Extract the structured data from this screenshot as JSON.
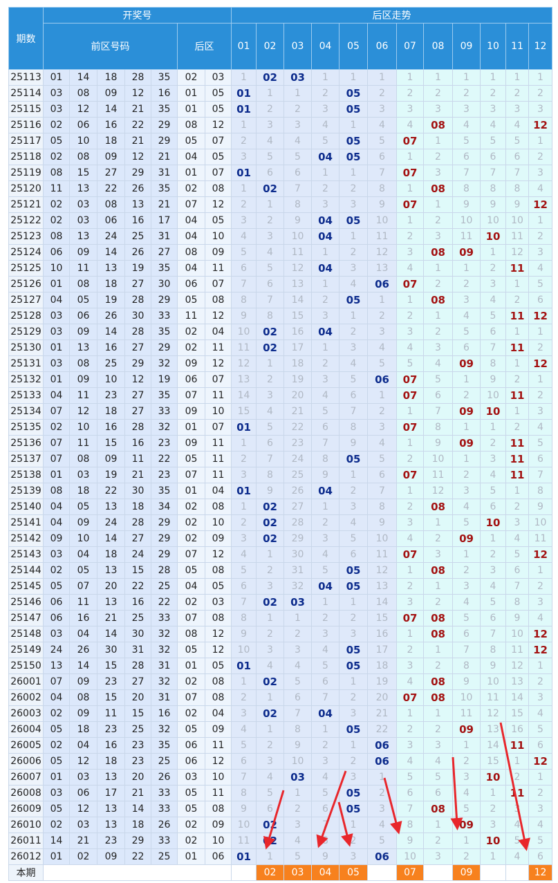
{
  "header": {
    "period": "期数",
    "draw": "开奖号",
    "front": "前区号码",
    "back": "后区",
    "trend": "后区走势",
    "trend_cols": [
      "01",
      "02",
      "03",
      "04",
      "05",
      "06",
      "07",
      "08",
      "09",
      "10",
      "11",
      "12"
    ]
  },
  "table": {
    "rows": [
      [
        "25113",
        "01",
        "14",
        "18",
        "28",
        "35",
        "02",
        "03",
        "1",
        "02",
        "03",
        "1",
        "1",
        "1",
        "1",
        "1",
        "1",
        "1",
        "1",
        "1"
      ],
      [
        "25114",
        "03",
        "08",
        "09",
        "12",
        "16",
        "01",
        "05",
        "01",
        "1",
        "1",
        "2",
        "05",
        "2",
        "2",
        "2",
        "2",
        "2",
        "2",
        "2"
      ],
      [
        "25115",
        "03",
        "12",
        "14",
        "21",
        "35",
        "01",
        "05",
        "01",
        "2",
        "2",
        "3",
        "05",
        "3",
        "3",
        "3",
        "3",
        "3",
        "3",
        "3"
      ],
      [
        "25116",
        "02",
        "06",
        "16",
        "22",
        "29",
        "08",
        "12",
        "1",
        "3",
        "3",
        "4",
        "1",
        "4",
        "4",
        "08",
        "4",
        "4",
        "4",
        "12"
      ],
      [
        "25117",
        "05",
        "10",
        "18",
        "21",
        "29",
        "05",
        "07",
        "2",
        "4",
        "4",
        "5",
        "05",
        "5",
        "07",
        "1",
        "5",
        "5",
        "5",
        "1"
      ],
      [
        "25118",
        "02",
        "08",
        "09",
        "12",
        "21",
        "04",
        "05",
        "3",
        "5",
        "5",
        "04",
        "05",
        "6",
        "1",
        "2",
        "6",
        "6",
        "6",
        "2"
      ],
      [
        "25119",
        "08",
        "15",
        "27",
        "29",
        "31",
        "01",
        "07",
        "01",
        "6",
        "6",
        "1",
        "1",
        "7",
        "07",
        "3",
        "7",
        "7",
        "7",
        "3"
      ],
      [
        "25120",
        "11",
        "13",
        "22",
        "26",
        "35",
        "02",
        "08",
        "1",
        "02",
        "7",
        "2",
        "2",
        "8",
        "1",
        "08",
        "8",
        "8",
        "8",
        "4"
      ],
      [
        "25121",
        "02",
        "03",
        "08",
        "13",
        "21",
        "07",
        "12",
        "2",
        "1",
        "8",
        "3",
        "3",
        "9",
        "07",
        "1",
        "9",
        "9",
        "9",
        "12"
      ],
      [
        "25122",
        "02",
        "03",
        "06",
        "16",
        "17",
        "04",
        "05",
        "3",
        "2",
        "9",
        "04",
        "05",
        "10",
        "1",
        "2",
        "10",
        "10",
        "10",
        "1"
      ],
      [
        "25123",
        "08",
        "13",
        "24",
        "25",
        "31",
        "04",
        "10",
        "4",
        "3",
        "10",
        "04",
        "1",
        "11",
        "2",
        "3",
        "11",
        "10",
        "11",
        "2"
      ],
      [
        "25124",
        "06",
        "09",
        "14",
        "26",
        "27",
        "08",
        "09",
        "5",
        "4",
        "11",
        "1",
        "2",
        "12",
        "3",
        "08",
        "09",
        "1",
        "12",
        "3"
      ],
      [
        "25125",
        "10",
        "11",
        "13",
        "19",
        "35",
        "04",
        "11",
        "6",
        "5",
        "12",
        "04",
        "3",
        "13",
        "4",
        "1",
        "1",
        "2",
        "11",
        "4"
      ],
      [
        "25126",
        "01",
        "08",
        "18",
        "27",
        "30",
        "06",
        "07",
        "7",
        "6",
        "13",
        "1",
        "4",
        "06",
        "07",
        "2",
        "2",
        "3",
        "1",
        "5"
      ],
      [
        "25127",
        "04",
        "05",
        "19",
        "28",
        "29",
        "05",
        "08",
        "8",
        "7",
        "14",
        "2",
        "05",
        "1",
        "1",
        "08",
        "3",
        "4",
        "2",
        "6"
      ],
      [
        "25128",
        "03",
        "06",
        "26",
        "30",
        "33",
        "11",
        "12",
        "9",
        "8",
        "15",
        "3",
        "1",
        "2",
        "2",
        "1",
        "4",
        "5",
        "11",
        "12"
      ],
      [
        "25129",
        "03",
        "09",
        "14",
        "28",
        "35",
        "02",
        "04",
        "10",
        "02",
        "16",
        "04",
        "2",
        "3",
        "3",
        "2",
        "5",
        "6",
        "1",
        "1"
      ],
      [
        "25130",
        "01",
        "13",
        "16",
        "27",
        "29",
        "02",
        "11",
        "11",
        "02",
        "17",
        "1",
        "3",
        "4",
        "4",
        "3",
        "6",
        "7",
        "11",
        "2"
      ],
      [
        "25131",
        "03",
        "08",
        "25",
        "29",
        "32",
        "09",
        "12",
        "12",
        "1",
        "18",
        "2",
        "4",
        "5",
        "5",
        "4",
        "09",
        "8",
        "1",
        "12"
      ],
      [
        "25132",
        "01",
        "09",
        "10",
        "12",
        "19",
        "06",
        "07",
        "13",
        "2",
        "19",
        "3",
        "5",
        "06",
        "07",
        "5",
        "1",
        "9",
        "2",
        "1"
      ],
      [
        "25133",
        "04",
        "11",
        "23",
        "27",
        "35",
        "07",
        "11",
        "14",
        "3",
        "20",
        "4",
        "6",
        "1",
        "07",
        "6",
        "2",
        "10",
        "11",
        "2"
      ],
      [
        "25134",
        "07",
        "12",
        "18",
        "27",
        "33",
        "09",
        "10",
        "15",
        "4",
        "21",
        "5",
        "7",
        "2",
        "1",
        "7",
        "09",
        "10",
        "1",
        "3"
      ],
      [
        "25135",
        "02",
        "10",
        "16",
        "28",
        "32",
        "01",
        "07",
        "01",
        "5",
        "22",
        "6",
        "8",
        "3",
        "07",
        "8",
        "1",
        "1",
        "2",
        "4"
      ],
      [
        "25136",
        "07",
        "11",
        "15",
        "16",
        "23",
        "09",
        "11",
        "1",
        "6",
        "23",
        "7",
        "9",
        "4",
        "1",
        "9",
        "09",
        "2",
        "11",
        "5"
      ],
      [
        "25137",
        "07",
        "08",
        "09",
        "11",
        "22",
        "05",
        "11",
        "2",
        "7",
        "24",
        "8",
        "05",
        "5",
        "2",
        "10",
        "1",
        "3",
        "11",
        "6"
      ],
      [
        "25138",
        "01",
        "03",
        "19",
        "21",
        "23",
        "07",
        "11",
        "3",
        "8",
        "25",
        "9",
        "1",
        "6",
        "07",
        "11",
        "2",
        "4",
        "11",
        "7"
      ],
      [
        "25139",
        "08",
        "18",
        "22",
        "30",
        "35",
        "01",
        "04",
        "01",
        "9",
        "26",
        "04",
        "2",
        "7",
        "1",
        "12",
        "3",
        "5",
        "1",
        "8"
      ],
      [
        "25140",
        "04",
        "05",
        "13",
        "18",
        "34",
        "02",
        "08",
        "1",
        "02",
        "27",
        "1",
        "3",
        "8",
        "2",
        "08",
        "4",
        "6",
        "2",
        "9"
      ],
      [
        "25141",
        "04",
        "09",
        "24",
        "28",
        "29",
        "02",
        "10",
        "2",
        "02",
        "28",
        "2",
        "4",
        "9",
        "3",
        "1",
        "5",
        "10",
        "3",
        "10"
      ],
      [
        "25142",
        "09",
        "10",
        "14",
        "27",
        "29",
        "02",
        "09",
        "3",
        "02",
        "29",
        "3",
        "5",
        "10",
        "4",
        "2",
        "09",
        "1",
        "4",
        "11"
      ],
      [
        "25143",
        "03",
        "04",
        "18",
        "24",
        "29",
        "07",
        "12",
        "4",
        "1",
        "30",
        "4",
        "6",
        "11",
        "07",
        "3",
        "1",
        "2",
        "5",
        "12"
      ],
      [
        "25144",
        "02",
        "05",
        "13",
        "15",
        "28",
        "05",
        "08",
        "5",
        "2",
        "31",
        "5",
        "05",
        "12",
        "1",
        "08",
        "2",
        "3",
        "6",
        "1"
      ],
      [
        "25145",
        "05",
        "07",
        "20",
        "22",
        "25",
        "04",
        "05",
        "6",
        "3",
        "32",
        "04",
        "05",
        "13",
        "2",
        "1",
        "3",
        "4",
        "7",
        "2"
      ],
      [
        "25146",
        "06",
        "11",
        "13",
        "16",
        "22",
        "02",
        "03",
        "7",
        "02",
        "03",
        "1",
        "1",
        "14",
        "3",
        "2",
        "4",
        "5",
        "8",
        "3"
      ],
      [
        "25147",
        "06",
        "16",
        "21",
        "25",
        "33",
        "07",
        "08",
        "8",
        "1",
        "1",
        "2",
        "2",
        "15",
        "07",
        "08",
        "5",
        "6",
        "9",
        "4"
      ],
      [
        "25148",
        "03",
        "04",
        "14",
        "30",
        "32",
        "08",
        "12",
        "9",
        "2",
        "2",
        "3",
        "3",
        "16",
        "1",
        "08",
        "6",
        "7",
        "10",
        "12"
      ],
      [
        "25149",
        "24",
        "26",
        "30",
        "31",
        "32",
        "05",
        "12",
        "10",
        "3",
        "3",
        "4",
        "05",
        "17",
        "2",
        "1",
        "7",
        "8",
        "11",
        "12"
      ],
      [
        "25150",
        "13",
        "14",
        "15",
        "28",
        "31",
        "01",
        "05",
        "01",
        "4",
        "4",
        "5",
        "05",
        "18",
        "3",
        "2",
        "8",
        "9",
        "12",
        "1"
      ],
      [
        "26001",
        "07",
        "09",
        "23",
        "27",
        "32",
        "02",
        "08",
        "1",
        "02",
        "5",
        "6",
        "1",
        "19",
        "4",
        "08",
        "9",
        "10",
        "13",
        "2"
      ],
      [
        "26002",
        "04",
        "08",
        "15",
        "20",
        "31",
        "07",
        "08",
        "2",
        "1",
        "6",
        "7",
        "2",
        "20",
        "07",
        "08",
        "10",
        "11",
        "14",
        "3"
      ],
      [
        "26003",
        "02",
        "09",
        "11",
        "15",
        "16",
        "02",
        "04",
        "3",
        "02",
        "7",
        "04",
        "3",
        "21",
        "1",
        "1",
        "11",
        "12",
        "15",
        "4"
      ],
      [
        "26004",
        "05",
        "18",
        "23",
        "25",
        "32",
        "05",
        "09",
        "4",
        "1",
        "8",
        "1",
        "05",
        "22",
        "2",
        "2",
        "09",
        "13",
        "16",
        "5"
      ],
      [
        "26005",
        "02",
        "04",
        "16",
        "23",
        "35",
        "06",
        "11",
        "5",
        "2",
        "9",
        "2",
        "1",
        "06",
        "3",
        "3",
        "1",
        "14",
        "11",
        "6"
      ],
      [
        "26006",
        "05",
        "12",
        "18",
        "23",
        "25",
        "06",
        "12",
        "6",
        "3",
        "10",
        "3",
        "2",
        "06",
        "4",
        "4",
        "2",
        "15",
        "1",
        "12"
      ],
      [
        "26007",
        "01",
        "03",
        "13",
        "20",
        "26",
        "03",
        "10",
        "7",
        "4",
        "03",
        "4",
        "3",
        "1",
        "5",
        "5",
        "3",
        "10",
        "2",
        "1"
      ],
      [
        "26008",
        "03",
        "06",
        "17",
        "21",
        "33",
        "05",
        "11",
        "8",
        "5",
        "1",
        "5",
        "05",
        "2",
        "6",
        "6",
        "4",
        "1",
        "11",
        "2"
      ],
      [
        "26009",
        "05",
        "12",
        "13",
        "14",
        "33",
        "05",
        "08",
        "9",
        "6",
        "2",
        "6",
        "05",
        "3",
        "7",
        "08",
        "5",
        "2",
        "3",
        "3"
      ],
      [
        "26010",
        "02",
        "03",
        "13",
        "18",
        "26",
        "02",
        "09",
        "10",
        "02",
        "3",
        "7",
        "1",
        "4",
        "8",
        "1",
        "09",
        "3",
        "4",
        "4"
      ],
      [
        "26011",
        "14",
        "21",
        "23",
        "29",
        "33",
        "02",
        "10",
        "11",
        "02",
        "4",
        "8",
        "2",
        "5",
        "9",
        "2",
        "1",
        "10",
        "5",
        "5"
      ],
      [
        "26012",
        "01",
        "02",
        "09",
        "22",
        "25",
        "01",
        "06",
        "01",
        "1",
        "5",
        "9",
        "3",
        "06",
        "10",
        "3",
        "2",
        "1",
        "4",
        "6"
      ]
    ],
    "current": {
      "label": "本期",
      "cells": [
        null,
        "02",
        "03",
        "04",
        "05",
        null,
        "07",
        null,
        "09",
        null,
        null,
        "12"
      ]
    }
  }
}
